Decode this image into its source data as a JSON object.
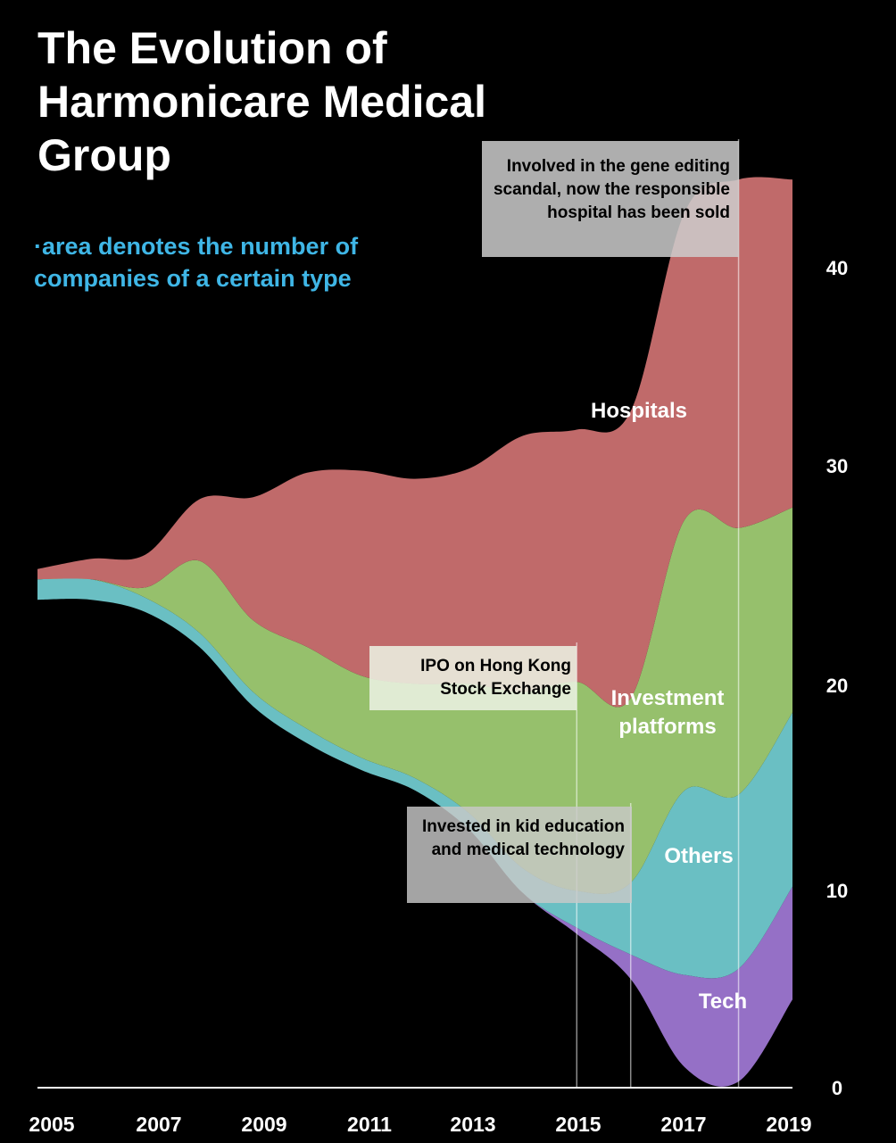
{
  "title": "The Evolution of Harmonicare Medical Group",
  "subtitle": "·area denotes the number of companies of a certain type",
  "colors": {
    "background": "#000000",
    "subtitle": "#3fb6e6",
    "Hospitals": "#c06a6a",
    "Investment platforms": "#96c06c",
    "Others": "#6abfc3",
    "Tech": "#9570c6"
  },
  "annotations": {
    "scandal": "Involved in the gene editing scandal, now the responsible hospital has been sold",
    "ipo": "IPO on Hong Kong Stock Exchange",
    "invest": "Invested in kid education and medical technology"
  },
  "chart_data": {
    "type": "area",
    "stacked": true,
    "x": [
      2005,
      2006,
      2007,
      2008,
      2009,
      2010,
      2011,
      2012,
      2013,
      2014,
      2015,
      2016,
      2017,
      2018,
      2019
    ],
    "x_ticks": [
      "2005",
      "2007",
      "2009",
      "2011",
      "2013",
      "2015",
      "2017",
      "2019"
    ],
    "y_ticks": [
      "0",
      "10",
      "20",
      "30",
      "40"
    ],
    "ylim": [
      0,
      46
    ],
    "series": [
      {
        "name": "Tech",
        "values": [
          0,
          0,
          0,
          0,
          0,
          0,
          0,
          0,
          0,
          0,
          0.3,
          1.2,
          4.5,
          5.5,
          5.5
        ]
      },
      {
        "name": "Others",
        "values": [
          1,
          1,
          0.7,
          0.7,
          0.7,
          0.7,
          0.6,
          0.6,
          0.8,
          1.2,
          1.8,
          3.5,
          9,
          8.5,
          8.5
        ]
      },
      {
        "name": "Investment platforms",
        "values": [
          0,
          0,
          0.5,
          3.5,
          3.5,
          4,
          4,
          4.6,
          6.3,
          8.6,
          10.2,
          9,
          13.2,
          13,
          10
        ]
      },
      {
        "name": "Hospitals",
        "values": [
          0.5,
          1,
          1.6,
          3,
          6,
          8.5,
          10,
          10,
          10.5,
          12.5,
          12.3,
          14,
          15,
          17,
          16
        ]
      }
    ],
    "labels": {
      "Hospitals": "Hospitals",
      "Investment platforms": "Investment platforms",
      "Others": "Others",
      "Tech": "Tech"
    },
    "reference_years": [
      2015,
      2016,
      2018
    ]
  }
}
